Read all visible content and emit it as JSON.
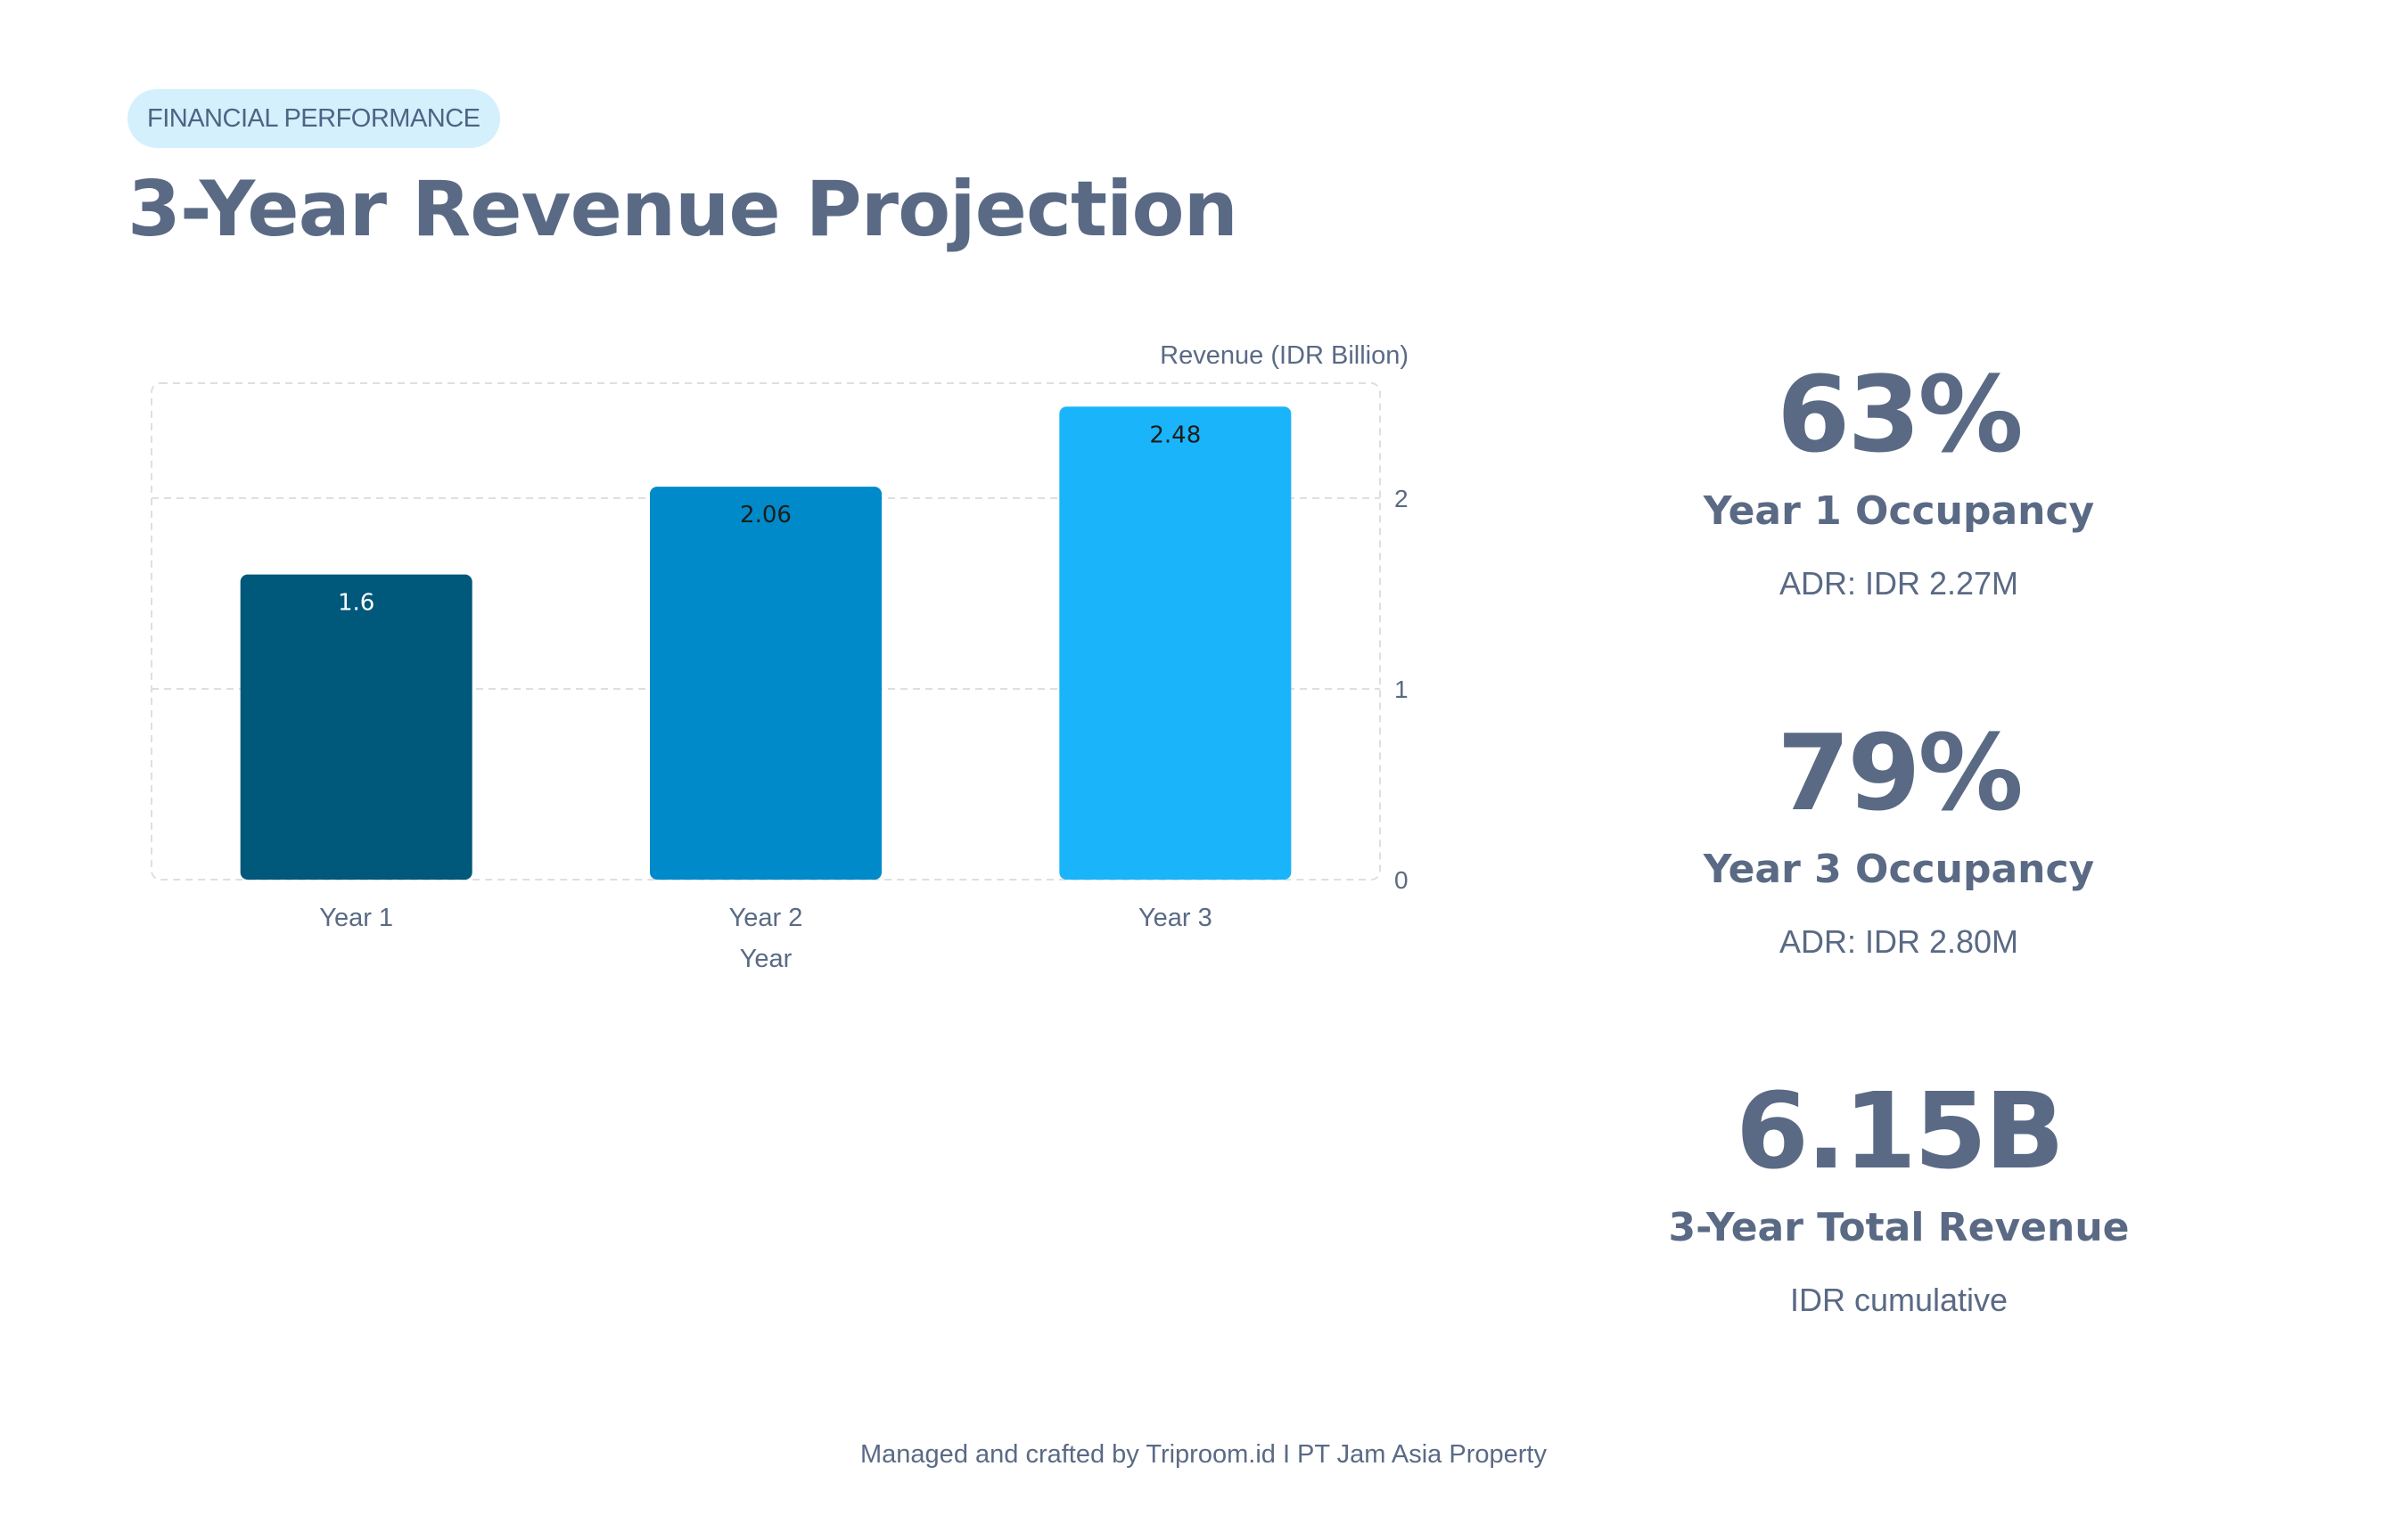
{
  "header": {
    "tag": "FINANCIAL PERFORMANCE",
    "title": "3-Year Revenue Projection"
  },
  "chart_data": {
    "type": "bar",
    "title": "",
    "categories": [
      "Year 1",
      "Year 2",
      "Year 3"
    ],
    "values": [
      1.6,
      2.06,
      2.48
    ],
    "data_labels": [
      "1.6",
      "2.06",
      "2.48"
    ],
    "colors": [
      "#00587a",
      "#008ac9",
      "#1ab4fb"
    ],
    "xlabel": "Year",
    "ylabel": "Revenue (IDR Billion)",
    "y_axis_side": "right",
    "yticks": [
      0,
      1,
      2
    ],
    "ytick_labels": [
      "0",
      "1",
      "2"
    ],
    "ylim": [
      0,
      2.6
    ],
    "grid": true,
    "legend": "none"
  },
  "stats": [
    {
      "value": "63%",
      "label": "Year 1 Occupancy",
      "sub": "ADR: IDR 2.27M"
    },
    {
      "value": "79%",
      "label": "Year 3 Occupancy",
      "sub": "ADR: IDR 2.80M"
    },
    {
      "value": "6.15B",
      "label": "3-Year Total Revenue",
      "sub": "IDR cumulative"
    }
  ],
  "footer": {
    "text": "Managed and crafted by Triproom.id I PT Jam Asia Property"
  }
}
